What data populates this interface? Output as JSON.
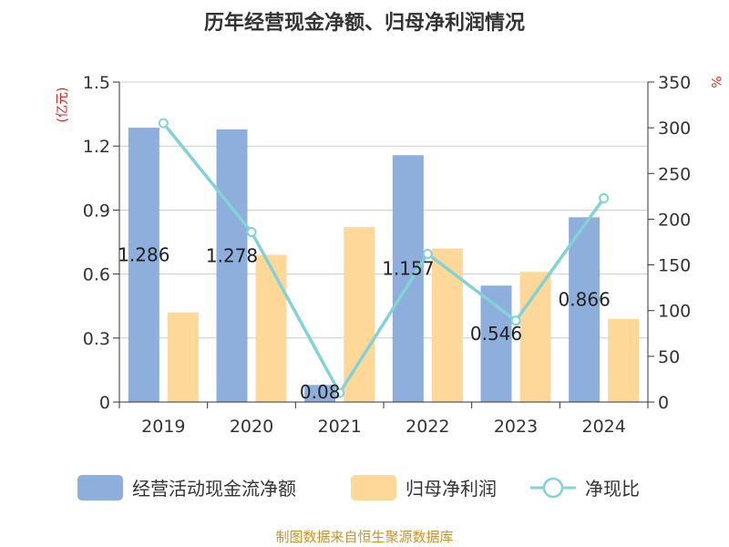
{
  "chart_data": {
    "type": "bar",
    "title": "历年经营现金净额、归母净利润情况",
    "categories": [
      "2019",
      "2020",
      "2021",
      "2022",
      "2023",
      "2024"
    ],
    "series": [
      {
        "name": "经营活动现金流净额",
        "type": "bar",
        "axis": "left",
        "color": "#8eaedb",
        "values": [
          1.286,
          1.278,
          0.08,
          1.157,
          0.546,
          0.866
        ],
        "labels": [
          "1.286",
          "1.278",
          "0.08",
          "1.157",
          "0.546",
          "0.866"
        ]
      },
      {
        "name": "归母净利润",
        "type": "bar",
        "axis": "left",
        "color": "#fed898",
        "values": [
          0.42,
          0.69,
          0.82,
          0.72,
          0.61,
          0.39
        ]
      },
      {
        "name": "净现比",
        "type": "line",
        "axis": "right",
        "color": "#82d2d6",
        "values": [
          305,
          186,
          10,
          162,
          89,
          223
        ]
      }
    ],
    "y_left": {
      "unit": "(亿元)",
      "min": 0,
      "max": 1.5,
      "ticks": [
        "0",
        "0.3",
        "0.6",
        "0.9",
        "1.2",
        "1.5"
      ]
    },
    "y_right": {
      "unit": "%",
      "min": 0,
      "max": 350,
      "ticks": [
        "0",
        "50",
        "100",
        "150",
        "200",
        "250",
        "300",
        "350"
      ]
    },
    "grid": true,
    "legend_position": "bottom"
  },
  "source": "制图数据来自恒生聚源数据库"
}
